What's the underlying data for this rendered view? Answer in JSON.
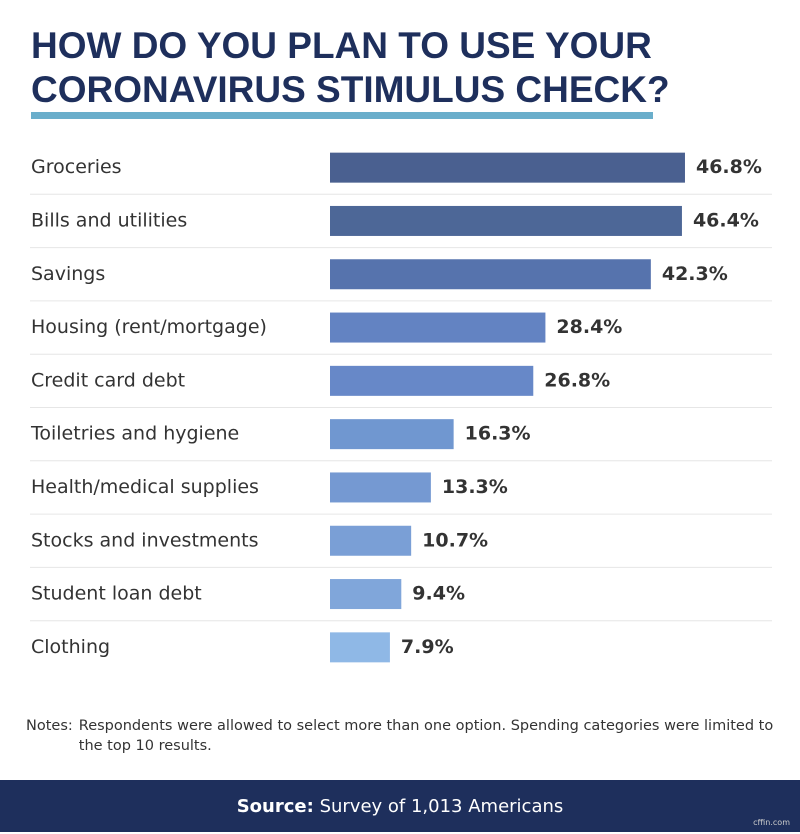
{
  "chart_data": {
    "type": "bar",
    "orientation": "horizontal",
    "title": "HOW DO YOU PLAN TO USE YOUR CORONAVIRUS STIMULUS CHECK?",
    "categories": [
      "Groceries",
      "Bills and utilities",
      "Savings",
      "Housing (rent/mortgage)",
      "Credit card debt",
      "Toiletries and hygiene",
      "Health/medical supplies",
      "Stocks and investments",
      "Student loan debt",
      "Clothing"
    ],
    "values": [
      46.8,
      46.4,
      42.3,
      28.4,
      26.8,
      16.3,
      13.3,
      10.7,
      9.4,
      7.9
    ],
    "value_labels": [
      "46.8%",
      "46.4%",
      "42.3%",
      "28.4%",
      "26.8%",
      "16.3%",
      "13.3%",
      "10.7%",
      "9.4%",
      "7.9%"
    ],
    "colors": [
      "#4a6090",
      "#4d6797",
      "#5673ad",
      "#6383c2",
      "#6788c8",
      "#7097d0",
      "#7599d2",
      "#7a9fd6",
      "#80a6da",
      "#8fb8e6"
    ]
  },
  "notes": {
    "label": "Notes:",
    "text": "Respondents were allowed to select more than one option. Spending categories were limited to the top 10 results."
  },
  "footer": {
    "label": "Source:",
    "text": "Survey of 1,013 Americans"
  },
  "watermark": "cffin.com"
}
